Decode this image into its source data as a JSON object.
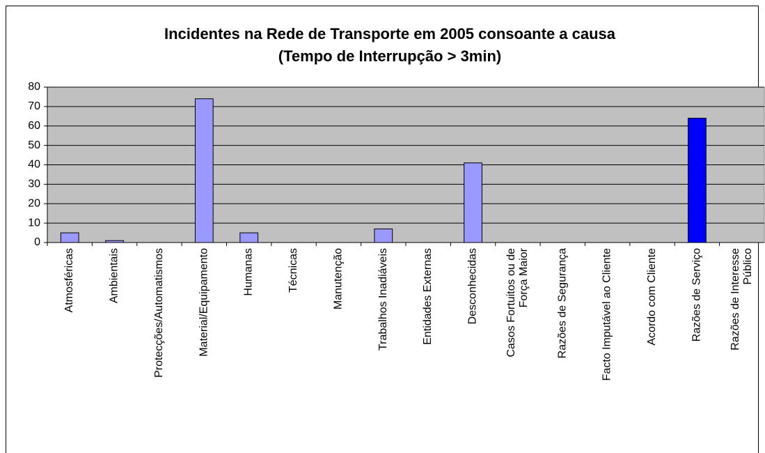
{
  "chart_data": {
    "type": "bar",
    "title": "Incidentes na Rede de Transporte em 2005 consoante a causa\n(Tempo de Interrupção > 3min)",
    "categories": [
      "Atmosféricas",
      "Ambientais",
      "Protecções/Automatismos",
      "Material/Equipamento",
      "Humanas",
      "Técnicas",
      "Manutenção",
      "Trabalhos Inadiáveis",
      "Entidades Externas",
      "Desconhecidas",
      "Casos Fortuitos ou de\nForça Maior",
      "Razões de Segurança",
      "Facto Imputável ao Cliente",
      "Acordo com Cliente",
      "Razões de Serviço",
      "Razões de Interesse\nPúblico"
    ],
    "values": [
      5,
      1,
      0,
      74,
      5,
      0,
      0,
      7,
      0,
      41,
      0,
      0,
      0,
      0,
      64,
      0
    ],
    "colors": [
      "#9999ff",
      "#9999ff",
      "#9999ff",
      "#9999ff",
      "#9999ff",
      "#9999ff",
      "#9999ff",
      "#9999ff",
      "#9999ff",
      "#9999ff",
      "#9999ff",
      "#9999ff",
      "#9999ff",
      "#9999ff",
      "#0000ff",
      "#9999ff"
    ],
    "ylim": [
      0,
      80
    ],
    "yticks": [
      0,
      10,
      20,
      30,
      40,
      50,
      60,
      70,
      80
    ],
    "grid": true
  }
}
